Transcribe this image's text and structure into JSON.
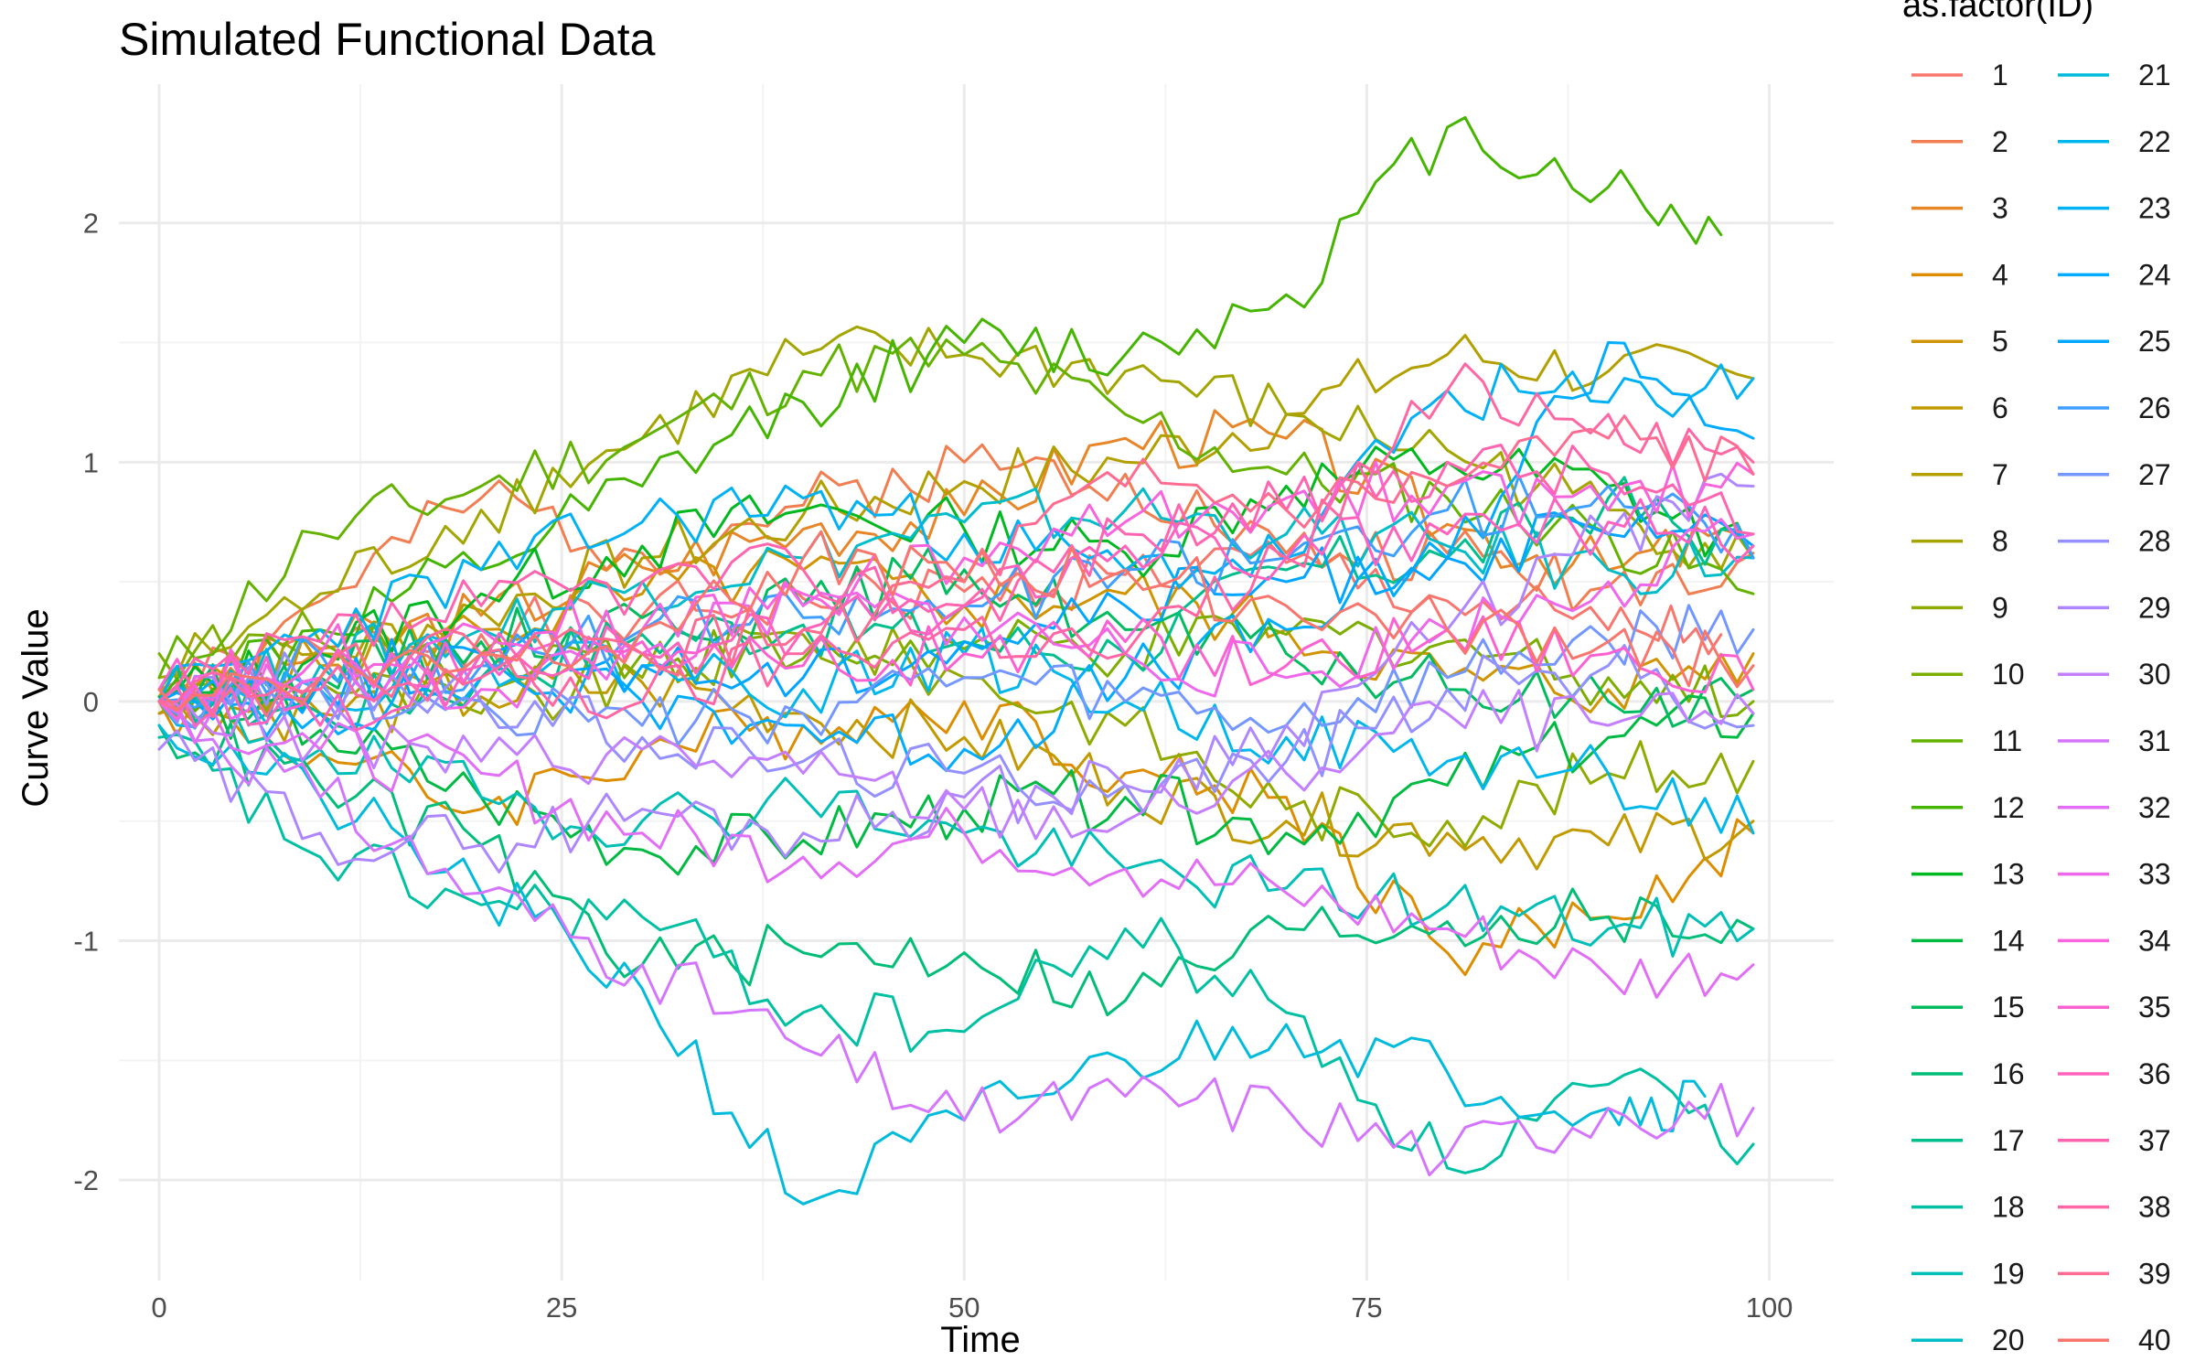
{
  "chart_data": {
    "type": "line",
    "title": "Simulated Functional Data",
    "xlabel": "Time",
    "ylabel": "Curve Value",
    "xlim": [
      -2.5,
      104
    ],
    "ylim": [
      -2.42,
      2.58
    ],
    "x_ticks": [
      0,
      25,
      50,
      75,
      100
    ],
    "x_tick_labels": [
      "0",
      "25",
      "50",
      "75",
      "100"
    ],
    "y_ticks": [
      -2,
      -1,
      0,
      1,
      2
    ],
    "y_tick_labels": [
      "-2",
      "-1",
      "0",
      "1",
      "2"
    ],
    "grid": true,
    "legend": {
      "title": "as.factor(ID)",
      "position": "right",
      "columns": 2
    },
    "series": [
      {
        "name": "1",
        "color": "#F8766D",
        "x": [
          0,
          10,
          20,
          30,
          40,
          50,
          60,
          70,
          80,
          90,
          97
        ],
        "y": [
          0.05,
          0.22,
          0.28,
          0.36,
          0.43,
          0.46,
          0.53,
          0.58,
          0.42,
          0.3,
          0.28
        ]
      },
      {
        "name": "2",
        "color": "#F17D50",
        "x": [
          0,
          10,
          20,
          30,
          40,
          50,
          60,
          70,
          80,
          90,
          99
        ],
        "y": [
          -0.05,
          0.42,
          0.85,
          0.62,
          0.82,
          1.0,
          0.95,
          0.62,
          0.62,
          0.48,
          0.62
        ]
      },
      {
        "name": "3",
        "color": "#E88526",
        "x": [
          0,
          10,
          20,
          30,
          40,
          50,
          60,
          70,
          80,
          90,
          98
        ],
        "y": [
          0.0,
          0.22,
          0.36,
          0.56,
          0.72,
          0.78,
          1.1,
          1.1,
          0.74,
          0.55,
          0.7
        ]
      },
      {
        "name": "4",
        "color": "#DD8D00",
        "x": [
          0,
          10,
          20,
          30,
          40,
          50,
          60,
          70,
          80,
          90,
          99
        ],
        "y": [
          0.0,
          -0.22,
          -0.45,
          -0.2,
          -0.1,
          0.0,
          -0.3,
          -0.4,
          -1.05,
          -0.9,
          -0.55
        ]
      },
      {
        "name": "5",
        "color": "#D09400",
        "x": [
          0,
          10,
          20,
          30,
          40,
          50,
          60,
          70,
          80,
          90,
          99
        ],
        "y": [
          0.02,
          0.15,
          0.3,
          0.45,
          0.55,
          0.4,
          0.45,
          0.3,
          0.1,
          0.05,
          0.2
        ]
      },
      {
        "name": "6",
        "color": "#C29A00",
        "x": [
          0,
          10,
          20,
          30,
          40,
          50,
          60,
          70,
          80,
          90,
          99
        ],
        "y": [
          0.0,
          -0.05,
          0.02,
          0.08,
          -0.05,
          -0.15,
          -0.35,
          -0.5,
          -0.55,
          -0.6,
          -0.5
        ]
      },
      {
        "name": "7",
        "color": "#B3A000",
        "x": [
          0,
          10,
          20,
          30,
          40,
          50,
          60,
          70,
          80,
          90,
          99
        ],
        "y": [
          -0.05,
          0.2,
          0.38,
          0.6,
          0.78,
          0.92,
          1.0,
          1.2,
          1.45,
          1.38,
          1.35
        ]
      },
      {
        "name": "8",
        "color": "#A3A500",
        "x": [
          0,
          10,
          20,
          30,
          40,
          50,
          60,
          70,
          80,
          90,
          99
        ],
        "y": [
          0.1,
          0.45,
          0.8,
          1.1,
          1.45,
          1.45,
          1.38,
          1.2,
          1.05,
          0.8,
          0.6
        ]
      },
      {
        "name": "9",
        "color": "#91AA00",
        "x": [
          0,
          10,
          20,
          30,
          40,
          50,
          60,
          70,
          80,
          90,
          99
        ],
        "y": [
          0.0,
          0.08,
          -0.05,
          0.1,
          0.28,
          0.1,
          -0.1,
          -0.45,
          -0.5,
          -0.3,
          -0.25
        ]
      },
      {
        "name": "10",
        "color": "#7CAE00",
        "x": [
          0,
          10,
          20,
          30,
          40,
          50,
          60,
          70,
          80,
          90,
          99
        ],
        "y": [
          0.2,
          0.25,
          0.2,
          0.2,
          0.18,
          0.22,
          0.2,
          0.28,
          0.25,
          0.1,
          0.0
        ]
      },
      {
        "name": "11",
        "color": "#64B200",
        "x": [
          0,
          10,
          20,
          30,
          40,
          50,
          60,
          70,
          80,
          90,
          99
        ],
        "y": [
          0.1,
          0.7,
          0.9,
          1.1,
          1.38,
          1.45,
          1.2,
          0.95,
          0.85,
          0.7,
          0.45
        ]
      },
      {
        "name": "12",
        "color": "#45B500",
        "x": [
          0,
          10,
          20,
          30,
          40,
          50,
          60,
          70,
          80,
          90,
          97
        ],
        "y": [
          0.0,
          0.3,
          0.55,
          0.9,
          1.25,
          1.5,
          1.45,
          1.7,
          2.4,
          2.15,
          1.95
        ]
      },
      {
        "name": "13",
        "color": "#00B81F",
        "x": [
          0,
          10,
          20,
          30,
          40,
          50,
          60,
          70,
          80,
          90,
          99
        ],
        "y": [
          0.0,
          0.2,
          0.45,
          0.65,
          0.8,
          0.72,
          0.62,
          0.9,
          1.0,
          0.9,
          0.6
        ]
      },
      {
        "name": "14",
        "color": "#00BA42",
        "x": [
          0,
          10,
          20,
          30,
          40,
          50,
          60,
          70,
          80,
          90,
          99
        ],
        "y": [
          0.02,
          -0.12,
          -0.4,
          -0.62,
          -0.58,
          -0.45,
          -0.4,
          -0.55,
          -0.35,
          -0.15,
          -0.05
        ]
      },
      {
        "name": "15",
        "color": "#00BC5F",
        "x": [
          0,
          10,
          20,
          30,
          40,
          50,
          60,
          70,
          80,
          90,
          99
        ],
        "y": [
          0.0,
          0.1,
          0.25,
          0.35,
          0.4,
          0.55,
          0.3,
          0.2,
          0.05,
          0.0,
          0.05
        ]
      },
      {
        "name": "16",
        "color": "#00BE77",
        "x": [
          0,
          10,
          20,
          30,
          40,
          50,
          60,
          70,
          80,
          90,
          99
        ],
        "y": [
          -0.1,
          -0.35,
          -0.6,
          -1.1,
          -1.05,
          -1.05,
          -1.25,
          -0.95,
          -0.92,
          -0.9,
          -0.95
        ]
      },
      {
        "name": "17",
        "color": "#00BF8C",
        "x": [
          0,
          10,
          20,
          30,
          40,
          50,
          60,
          70,
          80,
          90,
          99
        ],
        "y": [
          0.05,
          -0.05,
          0.1,
          0.28,
          0.32,
          0.25,
          0.2,
          0.55,
          0.6,
          0.85,
          0.6
        ]
      },
      {
        "name": "18",
        "color": "#00C0A3",
        "x": [
          0,
          10,
          20,
          30,
          40,
          50,
          60,
          70,
          80,
          90,
          99
        ],
        "y": [
          -0.15,
          -0.65,
          -0.85,
          -0.9,
          -1.3,
          -1.38,
          -0.95,
          -1.3,
          -1.95,
          -1.6,
          -1.85
        ]
      },
      {
        "name": "19",
        "color": "#00BFB7",
        "x": [
          0,
          10,
          20,
          30,
          40,
          50,
          60,
          70,
          80,
          90,
          99
        ],
        "y": [
          0.0,
          -0.2,
          -0.4,
          -0.5,
          -0.4,
          -0.55,
          -0.7,
          -0.78,
          -0.85,
          -0.95,
          -0.95
        ]
      },
      {
        "name": "20",
        "color": "#00BDC9",
        "x": [
          0,
          10,
          20,
          30,
          40,
          50,
          60,
          70,
          80,
          90,
          99
        ],
        "y": [
          0.0,
          0.15,
          0.3,
          0.5,
          0.6,
          0.75,
          0.8,
          0.7,
          0.65,
          0.55,
          0.6
        ]
      },
      {
        "name": "21",
        "color": "#00BBDB",
        "x": [
          0,
          10,
          20,
          30,
          40,
          50,
          60,
          70,
          80,
          90,
          96
        ],
        "y": [
          -0.1,
          -0.4,
          -0.8,
          -1.2,
          -2.1,
          -1.75,
          -1.5,
          -1.35,
          -1.55,
          -1.7,
          -1.65
        ]
      },
      {
        "name": "22",
        "color": "#00B7EB",
        "x": [
          0,
          10,
          20,
          30,
          40,
          50,
          60,
          70,
          80,
          90,
          99
        ],
        "y": [
          0.0,
          0.05,
          0.2,
          0.15,
          0.05,
          0.2,
          0.0,
          -0.15,
          -0.25,
          -0.3,
          -0.55
        ]
      },
      {
        "name": "23",
        "color": "#00B2F3",
        "x": [
          0,
          10,
          20,
          30,
          40,
          50,
          60,
          70,
          80,
          90,
          99
        ],
        "y": [
          0.0,
          0.3,
          0.55,
          0.75,
          0.85,
          0.7,
          0.55,
          0.6,
          1.3,
          1.25,
          1.35
        ]
      },
      {
        "name": "24",
        "color": "#00ACFC",
        "x": [
          0,
          10,
          20,
          30,
          40,
          50,
          60,
          70,
          80,
          90,
          99
        ],
        "y": [
          0.0,
          -0.05,
          0.1,
          0.0,
          -0.1,
          -0.2,
          0.1,
          0.3,
          0.6,
          1.5,
          1.1
        ]
      },
      {
        "name": "25",
        "color": "#00A5FF",
        "x": [
          0,
          10,
          20,
          30,
          40,
          50,
          60,
          70,
          80,
          90,
          99
        ],
        "y": [
          0.0,
          0.08,
          0.2,
          0.15,
          0.1,
          0.25,
          0.4,
          0.5,
          0.6,
          0.7,
          0.65
        ]
      },
      {
        "name": "26",
        "color": "#3E9FFF",
        "x": [
          0,
          10,
          20,
          30,
          40,
          50,
          60,
          70,
          80,
          90,
          99
        ],
        "y": [
          0.0,
          0.2,
          0.15,
          0.3,
          0.35,
          0.4,
          0.55,
          0.6,
          0.8,
          0.9,
          0.6
        ]
      },
      {
        "name": "27",
        "color": "#7497FF",
        "x": [
          0,
          10,
          20,
          30,
          40,
          50,
          60,
          70,
          80,
          90,
          99
        ],
        "y": [
          0.0,
          0.05,
          0.0,
          -0.1,
          -0.05,
          0.1,
          0.0,
          -0.1,
          0.1,
          0.25,
          0.3
        ]
      },
      {
        "name": "28",
        "color": "#9590FF",
        "x": [
          0,
          10,
          20,
          30,
          40,
          50,
          60,
          70,
          80,
          90,
          99
        ],
        "y": [
          0.0,
          0.1,
          0.0,
          -0.15,
          -0.25,
          -0.3,
          -0.35,
          -0.25,
          0.05,
          0.15,
          -0.1
        ]
      },
      {
        "name": "29",
        "color": "#AE87FF",
        "x": [
          0,
          10,
          20,
          30,
          40,
          50,
          60,
          70,
          80,
          90,
          99
        ],
        "y": [
          -0.2,
          -0.55,
          -0.6,
          -0.45,
          -0.55,
          -0.4,
          -0.35,
          -0.1,
          0.3,
          0.7,
          0.9
        ]
      },
      {
        "name": "30",
        "color": "#C37FFF",
        "x": [
          0,
          10,
          20,
          30,
          40,
          50,
          60,
          70,
          80,
          90,
          99
        ],
        "y": [
          0.0,
          -0.15,
          -0.25,
          -0.2,
          -0.3,
          -0.45,
          -0.5,
          -0.3,
          -0.05,
          -0.1,
          -0.05
        ]
      },
      {
        "name": "31",
        "color": "#D575FE",
        "x": [
          0,
          10,
          20,
          30,
          40,
          50,
          60,
          70,
          80,
          90,
          99
        ],
        "y": [
          0.0,
          -0.4,
          -0.8,
          -1.1,
          -1.45,
          -1.75,
          -1.65,
          -1.7,
          -1.9,
          -1.7,
          -1.7
        ]
      },
      {
        "name": "32",
        "color": "#E36EF6",
        "x": [
          0,
          10,
          20,
          30,
          40,
          50,
          60,
          70,
          80,
          90,
          99
        ],
        "y": [
          0.0,
          -0.2,
          -0.3,
          -0.55,
          -0.65,
          -0.55,
          -0.7,
          -0.8,
          -0.95,
          -1.15,
          -1.1
        ]
      },
      {
        "name": "33",
        "color": "#EF67EB",
        "x": [
          0,
          10,
          20,
          30,
          40,
          50,
          60,
          70,
          80,
          90,
          99
        ],
        "y": [
          0.0,
          0.1,
          0.05,
          0.2,
          0.4,
          0.35,
          0.2,
          0.1,
          0.3,
          0.5,
          0.7
        ]
      },
      {
        "name": "34",
        "color": "#F863DF",
        "x": [
          0,
          10,
          20,
          30,
          40,
          50,
          60,
          70,
          80,
          90,
          99
        ],
        "y": [
          0.0,
          0.2,
          0.3,
          0.3,
          0.45,
          0.6,
          0.75,
          0.85,
          0.9,
          0.8,
          0.95
        ]
      },
      {
        "name": "35",
        "color": "#FD61D1",
        "x": [
          0,
          10,
          20,
          30,
          40,
          50,
          60,
          70,
          80,
          90,
          99
        ],
        "y": [
          0.05,
          0.1,
          0.2,
          0.25,
          0.15,
          0.2,
          0.25,
          0.15,
          0.3,
          0.2,
          0.05
        ]
      },
      {
        "name": "36",
        "color": "#FF62BC",
        "x": [
          0,
          10,
          20,
          30,
          40,
          50,
          60,
          70,
          80,
          90,
          99
        ],
        "y": [
          0.0,
          -0.1,
          0.15,
          0.2,
          0.3,
          0.4,
          0.65,
          0.6,
          0.7,
          0.75,
          0.65
        ]
      },
      {
        "name": "37",
        "color": "#FF64B0",
        "x": [
          0,
          10,
          20,
          30,
          40,
          50,
          60,
          70,
          80,
          90,
          99
        ],
        "y": [
          0.0,
          0.25,
          0.4,
          0.5,
          0.55,
          0.4,
          0.7,
          0.8,
          1.0,
          0.95,
          0.7
        ]
      },
      {
        "name": "38",
        "color": "#FF67A4",
        "x": [
          0,
          10,
          20,
          30,
          40,
          50,
          60,
          70,
          80,
          90,
          99
        ],
        "y": [
          0.0,
          0.05,
          0.1,
          0.0,
          0.2,
          0.3,
          0.2,
          0.6,
          1.3,
          1.2,
          1.0
        ]
      },
      {
        "name": "39",
        "color": "#FF6C91",
        "x": [
          0,
          10,
          20,
          30,
          40,
          50,
          60,
          70,
          80,
          90,
          99
        ],
        "y": [
          0.0,
          0.1,
          0.2,
          0.2,
          0.3,
          0.5,
          0.9,
          0.8,
          0.9,
          1.1,
          0.95
        ]
      },
      {
        "name": "40",
        "color": "#F8766D",
        "x": [
          0,
          10,
          20,
          30,
          40,
          50,
          60,
          70,
          80,
          90,
          99
        ],
        "y": [
          0.05,
          0.1,
          0.2,
          0.3,
          0.6,
          0.5,
          0.55,
          0.4,
          0.3,
          0.25,
          0.15
        ]
      }
    ]
  }
}
